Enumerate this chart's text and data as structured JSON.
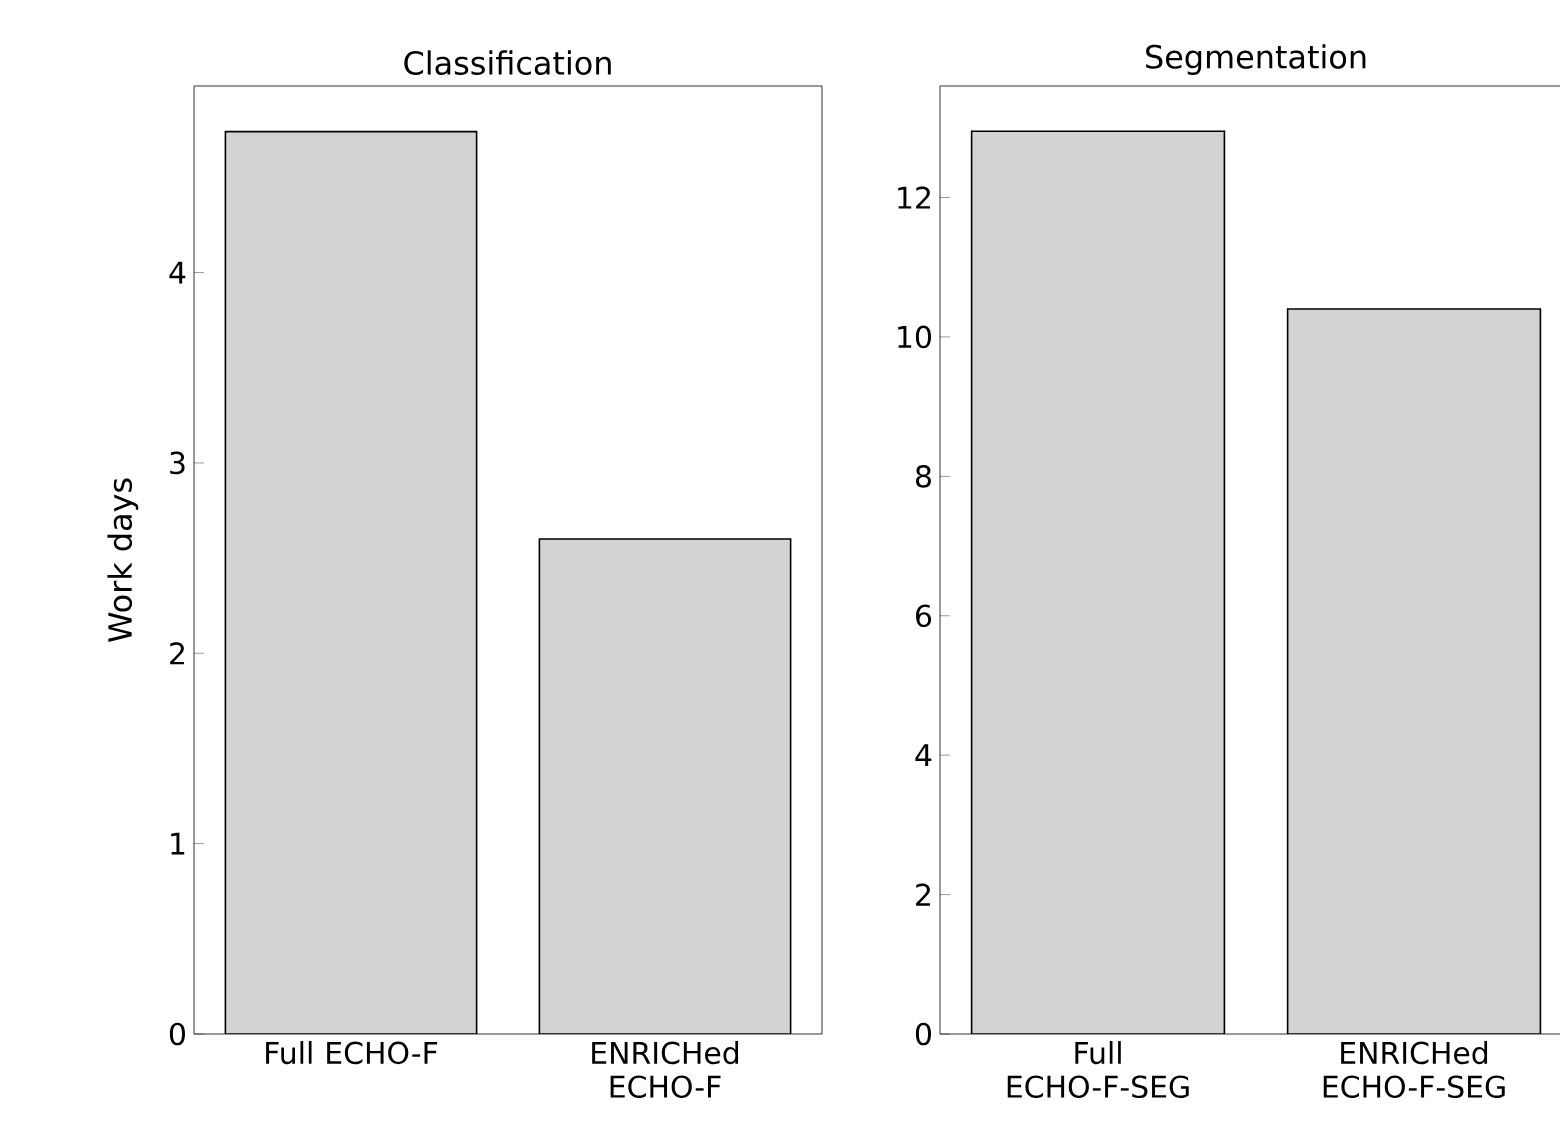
{
  "chart_data": [
    {
      "type": "bar",
      "title": "Classification",
      "ylabel": "Work days",
      "categories": [
        "Full ECHO-F",
        "ENRICHed ECHO-F"
      ],
      "values": [
        4.74,
        2.6
      ],
      "color": "#d3d3d3",
      "ylim": [
        0,
        4.98
      ],
      "yticks": [
        0,
        1,
        2,
        3,
        4
      ]
    },
    {
      "type": "bar",
      "title": "Segmentation",
      "categories": [
        "Full ECHO-F-SEG",
        "ENRICHed ECHO-F-SEG"
      ],
      "values": [
        12.95,
        10.4
      ],
      "color": "#d3d3d3",
      "ylim": [
        0,
        13.6
      ],
      "yticks": [
        0,
        2,
        4,
        6,
        8,
        10,
        12
      ]
    }
  ]
}
